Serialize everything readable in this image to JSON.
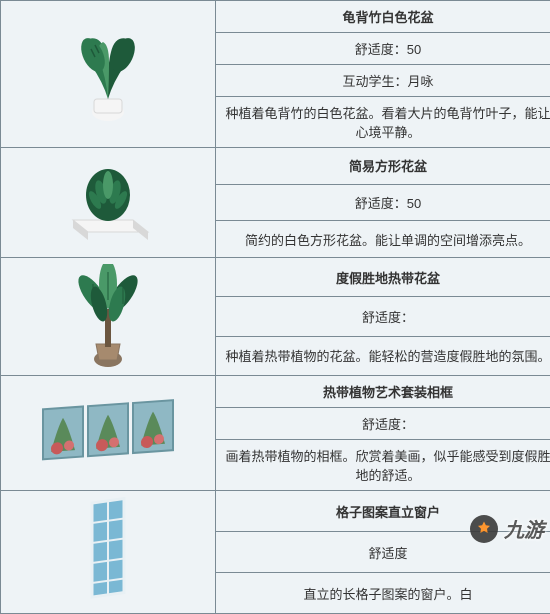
{
  "items": [
    {
      "name": "龟背竹白色花盆",
      "comfort": "舒适度：50",
      "extra": "互动学生：月咏",
      "desc": "种植着龟背竹的白色花盆。看着大片的龟背竹叶子，能让心境平静。",
      "img": "monstera"
    },
    {
      "name": "简易方形花盆",
      "comfort": "舒适度：50",
      "desc": "简约的白色方形花盆。能让单调的空间增添亮点。",
      "img": "square"
    },
    {
      "name": "度假胜地热带花盆",
      "comfort": "舒适度：",
      "desc": "种植着热带植物的花盆。能轻松的营造度假胜地的氛围。",
      "img": "tropic"
    },
    {
      "name": "热带植物艺术套装相框",
      "comfort": "舒适度：",
      "desc": "画着热带植物的相框。欣赏着美画，似乎能感受到度假胜地的舒适。",
      "img": "frames"
    },
    {
      "name": "格子图案直立窗户",
      "comfort": "舒适度",
      "desc": "直立的长格子图案的窗户。白",
      "img": "window"
    }
  ],
  "watermark": "九游",
  "colors": {
    "leaf_d": "#1e5a3a",
    "leaf_m": "#2d7a4f",
    "leaf_l": "#4a9968",
    "pot_w": "#f5f5f5",
    "pot_s": "#d8d8d8",
    "trunk": "#6b5640",
    "frame_b": "#8fb8c4",
    "frame_g": "#5a8a5a",
    "frame_r": "#c85a5a",
    "win_b": "#7ab8d4",
    "win_f": "#e8f0f4"
  }
}
